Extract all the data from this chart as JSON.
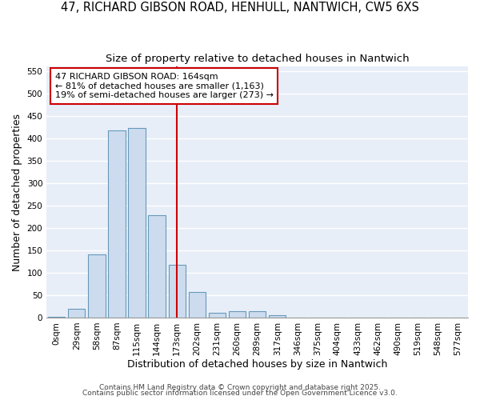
{
  "title_line1": "47, RICHARD GIBSON ROAD, HENHULL, NANTWICH, CW5 6XS",
  "title_line2": "Size of property relative to detached houses in Nantwich",
  "xlabel": "Distribution of detached houses by size in Nantwich",
  "ylabel": "Number of detached properties",
  "bin_labels": [
    "0sqm",
    "29sqm",
    "58sqm",
    "87sqm",
    "115sqm",
    "144sqm",
    "173sqm",
    "202sqm",
    "231sqm",
    "260sqm",
    "289sqm",
    "317sqm",
    "346sqm",
    "375sqm",
    "404sqm",
    "433sqm",
    "462sqm",
    "490sqm",
    "519sqm",
    "548sqm",
    "577sqm"
  ],
  "bar_heights": [
    2,
    20,
    140,
    418,
    422,
    228,
    117,
    57,
    10,
    15,
    15,
    5,
    0,
    0,
    0,
    0,
    0,
    0,
    0,
    0,
    0
  ],
  "bar_color": "#ccdcee",
  "bar_edge_color": "#6699bb",
  "vline_x": 6,
  "vline_color": "#cc0000",
  "annotation_text": "47 RICHARD GIBSON ROAD: 164sqm\n← 81% of detached houses are smaller (1,163)\n19% of semi-detached houses are larger (273) →",
  "annotation_box_color": "#ffffff",
  "annotation_box_edge": "#cc0000",
  "ylim": [
    0,
    560
  ],
  "yticks": [
    0,
    50,
    100,
    150,
    200,
    250,
    300,
    350,
    400,
    450,
    500,
    550
  ],
  "footer_line1": "Contains HM Land Registry data © Crown copyright and database right 2025.",
  "footer_line2": "Contains public sector information licensed under the Open Government Licence v3.0.",
  "bg_color": "#ffffff",
  "plot_bg_color": "#e8eef8",
  "grid_color": "#ffffff",
  "title_fontsize": 10.5,
  "subtitle_fontsize": 9.5,
  "axis_label_fontsize": 9,
  "tick_fontsize": 7.5,
  "annotation_fontsize": 8,
  "footer_fontsize": 6.5
}
